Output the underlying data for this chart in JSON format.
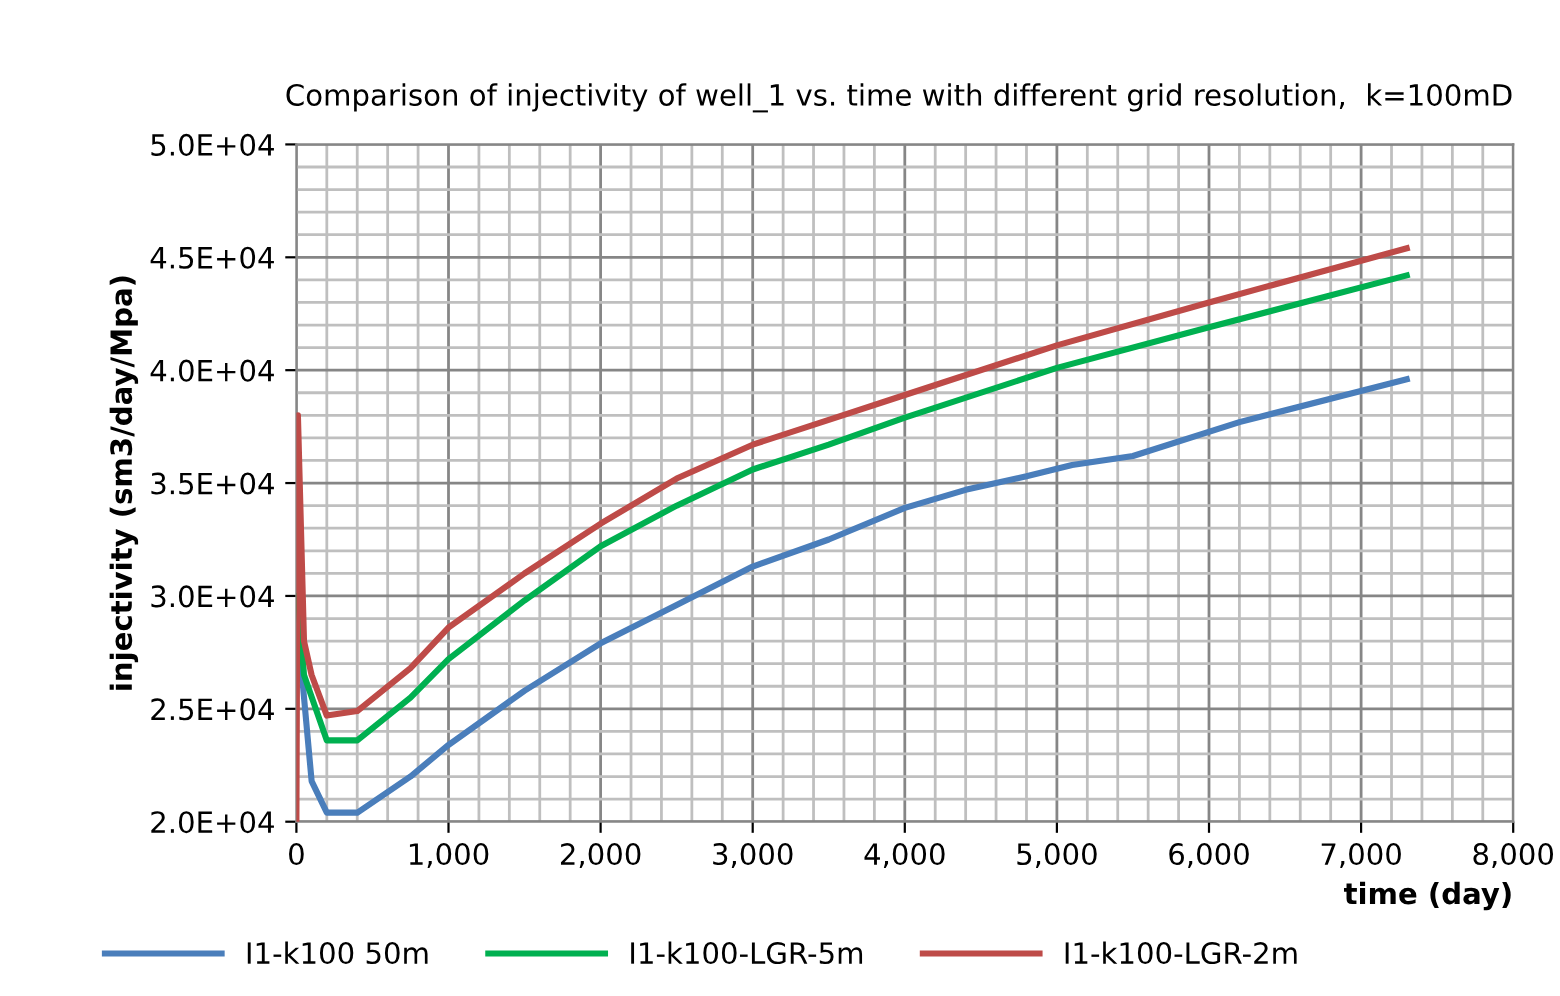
{
  "chart_data": {
    "type": "line",
    "title": "Comparison of injectivity of well_1 vs. time with different grid resolution,  k=100mD",
    "xlabel": "time (day)",
    "ylabel": "injectivity (sm3/day/Mpa)",
    "xlim": [
      0,
      8000
    ],
    "ylim": [
      20000,
      50000
    ],
    "xticks": [
      {
        "value": 0,
        "label": "0"
      },
      {
        "value": 200,
        "label": null
      },
      {
        "value": 400,
        "label": null
      },
      {
        "value": 600,
        "label": null
      },
      {
        "value": 800,
        "label": null
      },
      {
        "value": 1000,
        "label": "1,000"
      },
      {
        "value": 1200,
        "label": null
      },
      {
        "value": 1400,
        "label": null
      },
      {
        "value": 1600,
        "label": null
      },
      {
        "value": 1800,
        "label": null
      },
      {
        "value": 2000,
        "label": "2,000"
      },
      {
        "value": 2200,
        "label": null
      },
      {
        "value": 2400,
        "label": null
      },
      {
        "value": 2600,
        "label": null
      },
      {
        "value": 2800,
        "label": null
      },
      {
        "value": 3000,
        "label": "3,000"
      },
      {
        "value": 3200,
        "label": null
      },
      {
        "value": 3400,
        "label": null
      },
      {
        "value": 3600,
        "label": null
      },
      {
        "value": 3800,
        "label": null
      },
      {
        "value": 4000,
        "label": "4,000"
      },
      {
        "value": 4200,
        "label": null
      },
      {
        "value": 4400,
        "label": null
      },
      {
        "value": 4600,
        "label": null
      },
      {
        "value": 4800,
        "label": null
      },
      {
        "value": 5000,
        "label": "5,000"
      },
      {
        "value": 5200,
        "label": null
      },
      {
        "value": 5400,
        "label": null
      },
      {
        "value": 5600,
        "label": null
      },
      {
        "value": 5800,
        "label": null
      },
      {
        "value": 6000,
        "label": "6,000"
      },
      {
        "value": 6200,
        "label": null
      },
      {
        "value": 6400,
        "label": null
      },
      {
        "value": 6600,
        "label": null
      },
      {
        "value": 6800,
        "label": null
      },
      {
        "value": 7000,
        "label": "7,000"
      },
      {
        "value": 7200,
        "label": null
      },
      {
        "value": 7400,
        "label": null
      },
      {
        "value": 7600,
        "label": null
      },
      {
        "value": 7800,
        "label": null
      },
      {
        "value": 8000,
        "label": "8,000"
      }
    ],
    "yticks": [
      {
        "value": 20000,
        "label": "2.0E+04"
      },
      {
        "value": 21000,
        "label": null
      },
      {
        "value": 22000,
        "label": null
      },
      {
        "value": 23000,
        "label": null
      },
      {
        "value": 24000,
        "label": null
      },
      {
        "value": 25000,
        "label": "2.5E+04"
      },
      {
        "value": 26000,
        "label": null
      },
      {
        "value": 27000,
        "label": null
      },
      {
        "value": 28000,
        "label": null
      },
      {
        "value": 29000,
        "label": null
      },
      {
        "value": 30000,
        "label": "3.0E+04"
      },
      {
        "value": 31000,
        "label": null
      },
      {
        "value": 32000,
        "label": null
      },
      {
        "value": 33000,
        "label": null
      },
      {
        "value": 34000,
        "label": null
      },
      {
        "value": 35000,
        "label": "3.5E+04"
      },
      {
        "value": 36000,
        "label": null
      },
      {
        "value": 37000,
        "label": null
      },
      {
        "value": 38000,
        "label": null
      },
      {
        "value": 39000,
        "label": null
      },
      {
        "value": 40000,
        "label": "4.0E+04"
      },
      {
        "value": 41000,
        "label": null
      },
      {
        "value": 42000,
        "label": null
      },
      {
        "value": 43000,
        "label": null
      },
      {
        "value": 44000,
        "label": null
      },
      {
        "value": 45000,
        "label": "4.5E+04"
      },
      {
        "value": 46000,
        "label": null
      },
      {
        "value": 47000,
        "label": null
      },
      {
        "value": 48000,
        "label": null
      },
      {
        "value": 49000,
        "label": null
      },
      {
        "value": 50000,
        "label": "5.0E+04"
      }
    ],
    "grid": true,
    "legend": "bottom",
    "marker": "none",
    "line_style": "solid",
    "series": [
      {
        "name": "I1-k100 50m",
        "color": "#4a7ebb",
        "x": [
          30,
          100,
          200,
          400,
          750,
          1000,
          1500,
          2000,
          2500,
          3000,
          3500,
          4000,
          4400,
          4800,
          5100,
          5500,
          6200,
          7300
        ],
        "values": [
          27000,
          21800,
          20400,
          20400,
          22000,
          23400,
          25800,
          27900,
          29600,
          31300,
          32500,
          33900,
          34700,
          35300,
          35800,
          36200,
          37700,
          39600
        ]
      },
      {
        "name": "I1-k100-LGR-5m",
        "color": "#00b050",
        "x": [
          10,
          50,
          200,
          400,
          750,
          1000,
          1500,
          2000,
          2500,
          3000,
          3500,
          4000,
          5000,
          6000,
          7300
        ],
        "values": [
          30000,
          26500,
          23600,
          23600,
          25500,
          27200,
          29800,
          32200,
          34000,
          35600,
          36700,
          37900,
          40100,
          41900,
          44200
        ]
      },
      {
        "name": "I1-k100-LGR-2m",
        "color": "#be4b48",
        "x": [
          0,
          10,
          50,
          100,
          200,
          400,
          750,
          1000,
          1500,
          2000,
          2500,
          3000,
          3500,
          4000,
          5000,
          6000,
          7300
        ],
        "values": [
          20000,
          38000,
          28000,
          26500,
          24700,
          24900,
          26800,
          28600,
          31000,
          33200,
          35200,
          36700,
          37800,
          38900,
          41100,
          43000,
          45400
        ]
      }
    ]
  }
}
